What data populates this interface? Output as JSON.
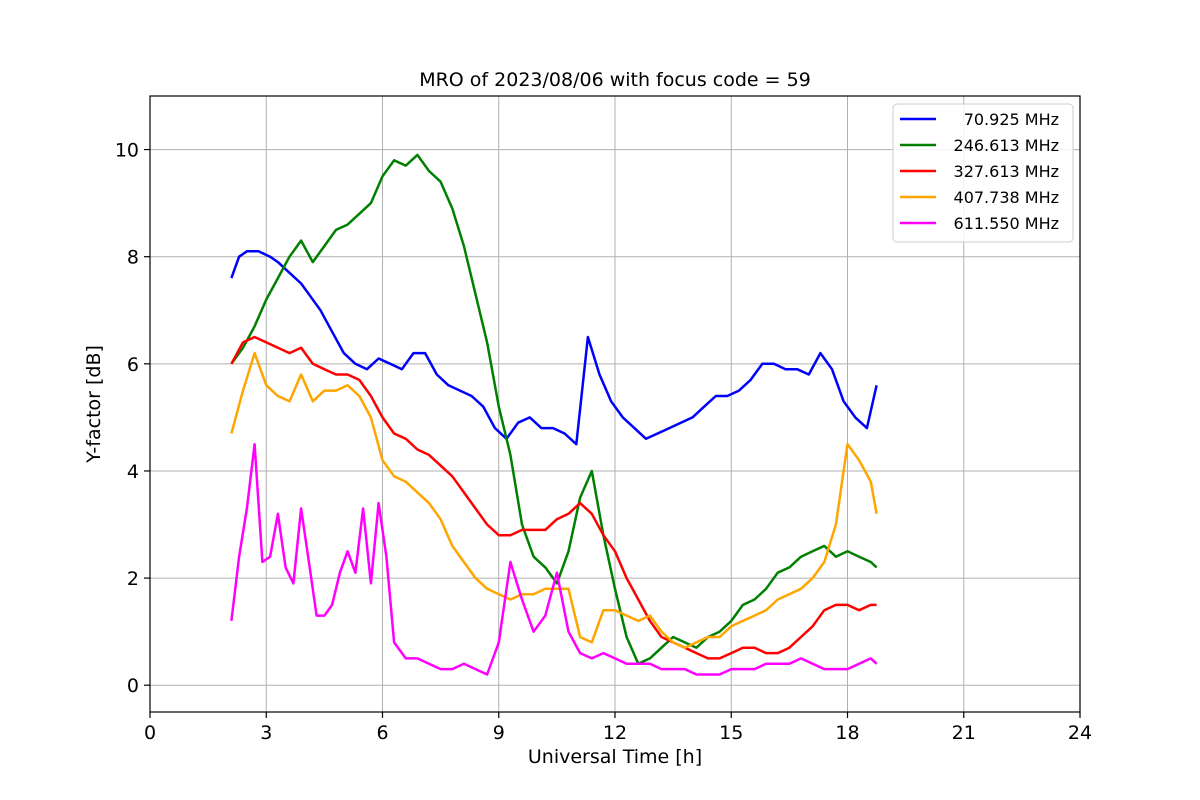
{
  "chart_data": {
    "type": "line",
    "title": "MRO of 2023/08/06 with focus code = 59",
    "xlabel": "Universal Time [h]",
    "ylabel": "Y-factor [dB]",
    "xlim": [
      0,
      24
    ],
    "ylim": [
      -0.5,
      11
    ],
    "xticks": [
      0,
      3,
      6,
      9,
      12,
      15,
      18,
      21,
      24
    ],
    "yticks": [
      0,
      2,
      4,
      6,
      8,
      10
    ],
    "xtick_labels": [
      "0",
      "3",
      "6",
      "9",
      "12",
      "15",
      "18",
      "21",
      "24"
    ],
    "ytick_labels": [
      "0",
      "2",
      "4",
      "6",
      "8",
      "10"
    ],
    "grid": true,
    "legend_position": "top-right",
    "series": [
      {
        "name": "70.925 MHz",
        "color": "#0000ff",
        "x": [
          2.1,
          2.3,
          2.5,
          2.8,
          3.1,
          3.3,
          3.6,
          3.9,
          4.1,
          4.4,
          4.7,
          5.0,
          5.3,
          5.6,
          5.9,
          6.2,
          6.5,
          6.8,
          7.1,
          7.4,
          7.7,
          8.0,
          8.3,
          8.6,
          8.9,
          9.2,
          9.5,
          9.8,
          10.1,
          10.4,
          10.7,
          11.0,
          11.3,
          11.6,
          11.9,
          12.2,
          12.5,
          12.8,
          13.1,
          13.4,
          13.7,
          14.0,
          14.3,
          14.6,
          14.9,
          15.2,
          15.5,
          15.8,
          16.1,
          16.4,
          16.7,
          17.0,
          17.3,
          17.6,
          17.9,
          18.2,
          18.5,
          18.75
        ],
        "y": [
          7.6,
          8.0,
          8.1,
          8.1,
          8.0,
          7.9,
          7.7,
          7.5,
          7.3,
          7.0,
          6.6,
          6.2,
          6.0,
          5.9,
          6.1,
          6.0,
          5.9,
          6.2,
          6.2,
          5.8,
          5.6,
          5.5,
          5.4,
          5.2,
          4.8,
          4.6,
          4.9,
          5.0,
          4.8,
          4.8,
          4.7,
          4.5,
          6.5,
          5.8,
          5.3,
          5.0,
          4.8,
          4.6,
          4.7,
          4.8,
          4.9,
          5.0,
          5.2,
          5.4,
          5.4,
          5.5,
          5.7,
          6.0,
          6.0,
          5.9,
          5.9,
          5.8,
          6.2,
          5.9,
          5.3,
          5.0,
          4.8,
          5.6
        ]
      },
      {
        "name": "246.613 MHz",
        "color": "#008000",
        "x": [
          2.1,
          2.4,
          2.7,
          3.0,
          3.3,
          3.6,
          3.9,
          4.2,
          4.5,
          4.8,
          5.1,
          5.4,
          5.7,
          6.0,
          6.3,
          6.6,
          6.9,
          7.2,
          7.5,
          7.8,
          8.1,
          8.4,
          8.7,
          9.0,
          9.3,
          9.6,
          9.9,
          10.2,
          10.5,
          10.8,
          11.1,
          11.4,
          11.7,
          12.0,
          12.3,
          12.6,
          12.9,
          13.2,
          13.5,
          13.8,
          14.1,
          14.4,
          14.7,
          15.0,
          15.3,
          15.6,
          15.9,
          16.2,
          16.5,
          16.8,
          17.1,
          17.4,
          17.7,
          18.0,
          18.3,
          18.6,
          18.75
        ],
        "y": [
          6.0,
          6.3,
          6.7,
          7.2,
          7.6,
          8.0,
          8.3,
          7.9,
          8.2,
          8.5,
          8.6,
          8.8,
          9.0,
          9.5,
          9.8,
          9.7,
          9.9,
          9.6,
          9.4,
          8.9,
          8.2,
          7.3,
          6.4,
          5.2,
          4.3,
          3.0,
          2.4,
          2.2,
          1.9,
          2.5,
          3.5,
          4.0,
          2.8,
          1.8,
          0.9,
          0.4,
          0.5,
          0.7,
          0.9,
          0.8,
          0.7,
          0.9,
          1.0,
          1.2,
          1.5,
          1.6,
          1.8,
          2.1,
          2.2,
          2.4,
          2.5,
          2.6,
          2.4,
          2.5,
          2.4,
          2.3,
          2.2
        ]
      },
      {
        "name": "327.613 MHz",
        "color": "#ff0000",
        "x": [
          2.1,
          2.4,
          2.7,
          3.0,
          3.3,
          3.6,
          3.9,
          4.2,
          4.5,
          4.8,
          5.1,
          5.4,
          5.7,
          6.0,
          6.3,
          6.6,
          6.9,
          7.2,
          7.5,
          7.8,
          8.1,
          8.4,
          8.7,
          9.0,
          9.3,
          9.6,
          9.9,
          10.2,
          10.5,
          10.8,
          11.1,
          11.4,
          11.7,
          12.0,
          12.3,
          12.6,
          12.9,
          13.2,
          13.5,
          13.8,
          14.1,
          14.4,
          14.7,
          15.0,
          15.3,
          15.6,
          15.9,
          16.2,
          16.5,
          16.8,
          17.1,
          17.4,
          17.7,
          18.0,
          18.3,
          18.6,
          18.75
        ],
        "y": [
          6.0,
          6.4,
          6.5,
          6.4,
          6.3,
          6.2,
          6.3,
          6.0,
          5.9,
          5.8,
          5.8,
          5.7,
          5.4,
          5.0,
          4.7,
          4.6,
          4.4,
          4.3,
          4.1,
          3.9,
          3.6,
          3.3,
          3.0,
          2.8,
          2.8,
          2.9,
          2.9,
          2.9,
          3.1,
          3.2,
          3.4,
          3.2,
          2.8,
          2.5,
          2.0,
          1.6,
          1.2,
          0.9,
          0.8,
          0.7,
          0.6,
          0.5,
          0.5,
          0.6,
          0.7,
          0.7,
          0.6,
          0.6,
          0.7,
          0.9,
          1.1,
          1.4,
          1.5,
          1.5,
          1.4,
          1.5,
          1.5
        ]
      },
      {
        "name": "407.738 MHz",
        "color": "#ffa500",
        "x": [
          2.1,
          2.4,
          2.7,
          3.0,
          3.3,
          3.6,
          3.9,
          4.2,
          4.5,
          4.8,
          5.1,
          5.4,
          5.7,
          6.0,
          6.3,
          6.6,
          6.9,
          7.2,
          7.5,
          7.8,
          8.1,
          8.4,
          8.7,
          9.0,
          9.3,
          9.6,
          9.9,
          10.2,
          10.5,
          10.8,
          11.1,
          11.4,
          11.7,
          12.0,
          12.3,
          12.6,
          12.9,
          13.2,
          13.5,
          13.8,
          14.1,
          14.4,
          14.7,
          15.0,
          15.3,
          15.6,
          15.9,
          16.2,
          16.5,
          16.8,
          17.1,
          17.4,
          17.7,
          18.0,
          18.3,
          18.6,
          18.75
        ],
        "y": [
          4.7,
          5.5,
          6.2,
          5.6,
          5.4,
          5.3,
          5.8,
          5.3,
          5.5,
          5.5,
          5.6,
          5.4,
          5.0,
          4.2,
          3.9,
          3.8,
          3.6,
          3.4,
          3.1,
          2.6,
          2.3,
          2.0,
          1.8,
          1.7,
          1.6,
          1.7,
          1.7,
          1.8,
          1.8,
          1.8,
          0.9,
          0.8,
          1.4,
          1.4,
          1.3,
          1.2,
          1.3,
          1.0,
          0.8,
          0.7,
          0.8,
          0.9,
          0.9,
          1.1,
          1.2,
          1.3,
          1.4,
          1.6,
          1.7,
          1.8,
          2.0,
          2.3,
          3.0,
          4.5,
          4.2,
          3.8,
          3.2
        ]
      },
      {
        "name": "611.550 MHz",
        "color": "#ff00ff",
        "x": [
          2.1,
          2.3,
          2.5,
          2.7,
          2.9,
          3.1,
          3.3,
          3.5,
          3.7,
          3.9,
          4.1,
          4.3,
          4.5,
          4.7,
          4.9,
          5.1,
          5.3,
          5.5,
          5.7,
          5.9,
          6.1,
          6.3,
          6.6,
          6.9,
          7.2,
          7.5,
          7.8,
          8.1,
          8.4,
          8.7,
          9.0,
          9.3,
          9.6,
          9.9,
          10.2,
          10.5,
          10.8,
          11.1,
          11.4,
          11.7,
          12.0,
          12.3,
          12.6,
          12.9,
          13.2,
          13.5,
          13.8,
          14.1,
          14.4,
          14.7,
          15.0,
          15.3,
          15.6,
          15.9,
          16.2,
          16.5,
          16.8,
          17.1,
          17.4,
          17.7,
          18.0,
          18.3,
          18.6,
          18.75
        ],
        "y": [
          1.2,
          2.4,
          3.3,
          4.5,
          2.3,
          2.4,
          3.2,
          2.2,
          1.9,
          3.3,
          2.3,
          1.3,
          1.3,
          1.5,
          2.1,
          2.5,
          2.1,
          3.3,
          1.9,
          3.4,
          2.4,
          0.8,
          0.5,
          0.5,
          0.4,
          0.3,
          0.3,
          0.4,
          0.3,
          0.2,
          0.8,
          2.3,
          1.6,
          1.0,
          1.3,
          2.1,
          1.0,
          0.6,
          0.5,
          0.6,
          0.5,
          0.4,
          0.4,
          0.4,
          0.3,
          0.3,
          0.3,
          0.2,
          0.2,
          0.2,
          0.3,
          0.3,
          0.3,
          0.4,
          0.4,
          0.4,
          0.5,
          0.4,
          0.3,
          0.3,
          0.3,
          0.4,
          0.5,
          0.4
        ]
      }
    ]
  }
}
